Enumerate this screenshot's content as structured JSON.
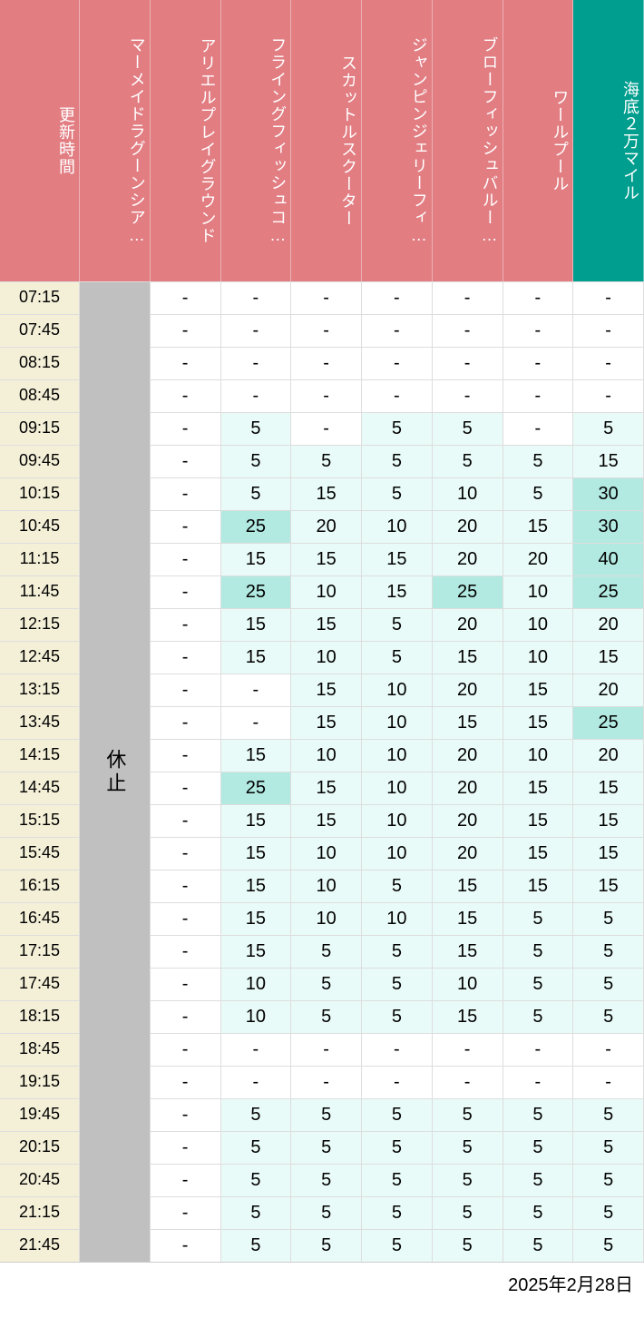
{
  "colors": {
    "header_pink": "#e27d82",
    "header_teal": "#009e8e",
    "time_bg": "#f4f0d8",
    "merged_bg": "#c0c0c0",
    "white": "#ffffff",
    "tint_light": "#e9fbf8",
    "tint_med": "#b2eae2",
    "text": "#000000",
    "border": "#dddddd"
  },
  "thresholds": {
    "light_max": 20,
    "med_max": 40
  },
  "headers": [
    {
      "label": "更新時間",
      "bg_key": "header_pink"
    },
    {
      "label": "マーメイドラグーンシア…",
      "bg_key": "header_pink"
    },
    {
      "label": "アリエルプレイグラウンド",
      "bg_key": "header_pink"
    },
    {
      "label": "フライングフィッシュコ…",
      "bg_key": "header_pink"
    },
    {
      "label": "スカットルスクーター",
      "bg_key": "header_pink"
    },
    {
      "label": "ジャンピンジェリーフィ…",
      "bg_key": "header_pink"
    },
    {
      "label": "ブローフィッシュバルー…",
      "bg_key": "header_pink"
    },
    {
      "label": "ワールプール",
      "bg_key": "header_pink"
    },
    {
      "label": "海底２万マイル",
      "bg_key": "header_teal"
    }
  ],
  "times": [
    "07:15",
    "07:45",
    "08:15",
    "08:45",
    "09:15",
    "09:45",
    "10:15",
    "10:45",
    "11:15",
    "11:45",
    "12:15",
    "12:45",
    "13:15",
    "13:45",
    "14:15",
    "14:45",
    "15:15",
    "15:45",
    "16:15",
    "16:45",
    "17:15",
    "17:45",
    "18:15",
    "18:45",
    "19:15",
    "19:45",
    "20:15",
    "20:45",
    "21:15",
    "21:45"
  ],
  "merged_col1": {
    "text": "休止",
    "bg_key": "merged_bg"
  },
  "data": [
    [
      "-",
      "-",
      "-",
      "-",
      "-",
      "-",
      "-"
    ],
    [
      "-",
      "-",
      "-",
      "-",
      "-",
      "-",
      "-"
    ],
    [
      "-",
      "-",
      "-",
      "-",
      "-",
      "-",
      "-"
    ],
    [
      "-",
      "-",
      "-",
      "-",
      "-",
      "-",
      "-"
    ],
    [
      "-",
      5,
      "-",
      5,
      5,
      "-",
      5
    ],
    [
      "-",
      5,
      5,
      5,
      5,
      5,
      15
    ],
    [
      "-",
      5,
      15,
      5,
      10,
      5,
      30
    ],
    [
      "-",
      25,
      20,
      10,
      20,
      15,
      30
    ],
    [
      "-",
      15,
      15,
      15,
      20,
      20,
      40
    ],
    [
      "-",
      25,
      10,
      15,
      25,
      10,
      25
    ],
    [
      "-",
      15,
      15,
      5,
      20,
      10,
      20
    ],
    [
      "-",
      15,
      10,
      5,
      15,
      10,
      15
    ],
    [
      "-",
      "-",
      15,
      10,
      20,
      15,
      20
    ],
    [
      "-",
      "-",
      15,
      10,
      15,
      15,
      25
    ],
    [
      "-",
      15,
      10,
      10,
      20,
      10,
      20
    ],
    [
      "-",
      25,
      15,
      10,
      20,
      15,
      15
    ],
    [
      "-",
      15,
      15,
      10,
      20,
      15,
      15
    ],
    [
      "-",
      15,
      10,
      10,
      20,
      15,
      15
    ],
    [
      "-",
      15,
      10,
      5,
      15,
      15,
      15
    ],
    [
      "-",
      15,
      10,
      10,
      15,
      5,
      5
    ],
    [
      "-",
      15,
      5,
      5,
      15,
      5,
      5
    ],
    [
      "-",
      10,
      5,
      5,
      10,
      5,
      5
    ],
    [
      "-",
      10,
      5,
      5,
      15,
      5,
      5
    ],
    [
      "-",
      "-",
      "-",
      "-",
      "-",
      "-",
      "-"
    ],
    [
      "-",
      "-",
      "-",
      "-",
      "-",
      "-",
      "-"
    ],
    [
      "-",
      5,
      5,
      5,
      5,
      5,
      5
    ],
    [
      "-",
      5,
      5,
      5,
      5,
      5,
      5
    ],
    [
      "-",
      5,
      5,
      5,
      5,
      5,
      5
    ],
    [
      "-",
      5,
      5,
      5,
      5,
      5,
      5
    ],
    [
      "-",
      5,
      5,
      5,
      5,
      5,
      5
    ]
  ],
  "footer_date": "2025年2月28日"
}
